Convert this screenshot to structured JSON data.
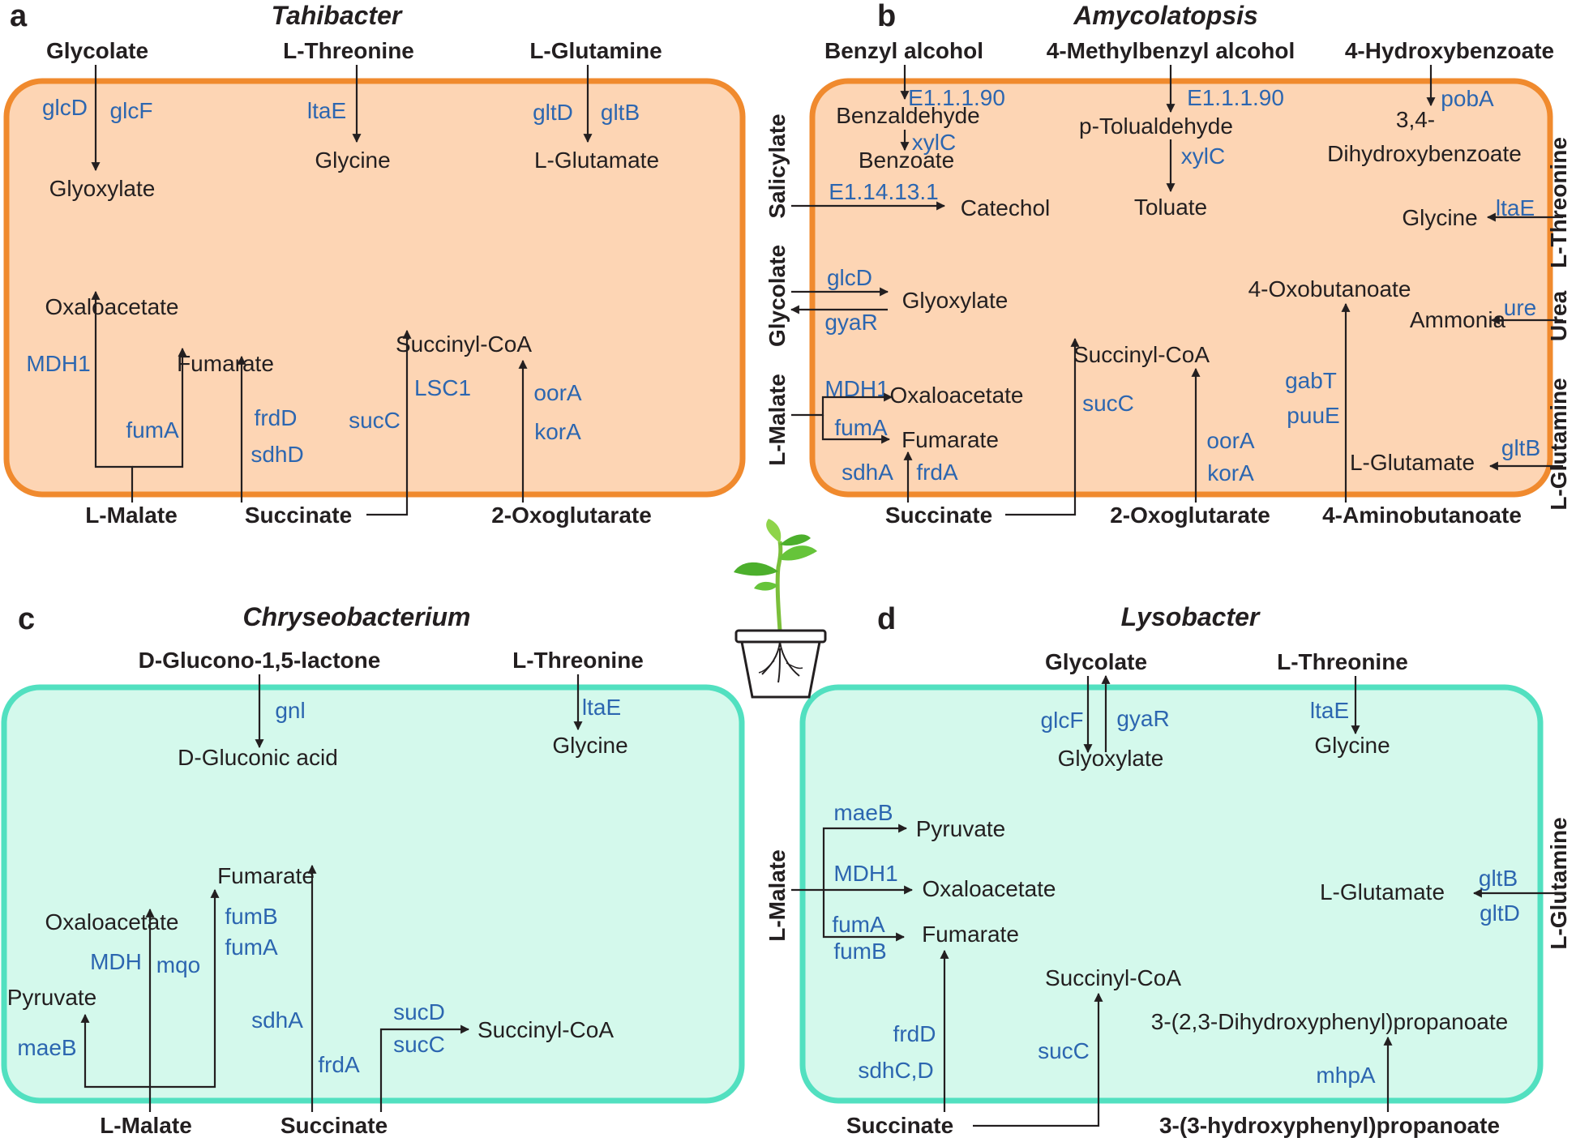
{
  "panels": {
    "a": {
      "letter": "a",
      "title": "Tahibacter",
      "external": [
        "Glycolate",
        "L-Threonine",
        "L-Glutamine",
        "L-Malate",
        "Succinate",
        "2-Oxoglutarate"
      ],
      "metabolites": [
        "Glyoxylate",
        "Glycine",
        "L-Glutamate",
        "Oxaloacetate",
        "Fumarate",
        "Succinyl-CoA"
      ],
      "enzymes": [
        "glcD",
        "glcF",
        "ltaE",
        "gltD",
        "gltB",
        "MDH1",
        "fumA",
        "frdD",
        "sdhD",
        "sucC",
        "LSC1",
        "oorA",
        "korA"
      ]
    },
    "b": {
      "letter": "b",
      "title": "Amycolatopsis",
      "external": [
        "Benzyl alcohol",
        "4-Methylbenzyl alcohol",
        "4-Hydroxybenzoate",
        "Salicylate",
        "Glycolate",
        "L-Malate",
        "L-Threonine",
        "Urea",
        "L-Glutamine",
        "Succinate",
        "2-Oxoglutarate",
        "4-Aminobutanoate"
      ],
      "metabolites": [
        "Benzaldehyde",
        "Benzoate",
        "p-Tolualdehyde",
        "Toluate",
        "3,4-",
        "Dihydroxybenzoate",
        "Catechol",
        "Glycine",
        "Glyoxylate",
        "4-Oxobutanoate",
        "Ammonia",
        "Succinyl-CoA",
        "Oxaloacetate",
        "Fumarate",
        "L-Glutamate"
      ],
      "enzymes": [
        "E1.1.1.90",
        "xylC",
        "E1.1.1.90",
        "xylC",
        "pobA",
        "E1.14.13.1",
        "ltaE",
        "glcD",
        "gyaR",
        "ure",
        "MDH1",
        "fumA",
        "sdhA",
        "frdA",
        "sucC",
        "oorA",
        "korA",
        "gabT",
        "puuE",
        "gltB"
      ]
    },
    "c": {
      "letter": "c",
      "title": "Chryseobacterium",
      "external": [
        "D-Glucono-1,5-lactone",
        "L-Threonine",
        "L-Malate",
        "Succinate"
      ],
      "metabolites": [
        "D-Gluconic acid",
        "Glycine",
        "Fumarate",
        "Oxaloacetate",
        "Pyruvate",
        "Succinyl-CoA"
      ],
      "enzymes": [
        "gnl",
        "ltaE",
        "fumB",
        "fumA",
        "MDH",
        "mqo",
        "maeB",
        "sdhA",
        "frdA",
        "sucD",
        "sucC"
      ]
    },
    "d": {
      "letter": "d",
      "title": "Lysobacter",
      "external": [
        "Glycolate",
        "L-Threonine",
        "L-Malate",
        "L-Glutamine",
        "Succinate",
        "3-(3-hydroxyphenyl)propanoate"
      ],
      "metabolites": [
        "Glyoxylate",
        "Glycine",
        "Pyruvate",
        "Oxaloacetate",
        "Fumarate",
        "L-Glutamate",
        "Succinyl-CoA",
        "3-(2,3-Dihydroxyphenyl)propanoate"
      ],
      "enzymes": [
        "glcF",
        "gyaR",
        "ltaE",
        "maeB",
        "MDH1",
        "fumA",
        "fumB",
        "gltB",
        "gltD",
        "frdD",
        "sdhC,D",
        "sucC",
        "mhpA"
      ]
    }
  },
  "colors": {
    "orange_fill": "#fdd5b4",
    "orange_border": "#f08a2e",
    "teal_fill": "#d4f9ec",
    "teal_border": "#52e0c0",
    "enzyme_blue": "#2c66b0",
    "text": "#231f20"
  },
  "icons": {
    "center": "potted-plant-icon"
  }
}
